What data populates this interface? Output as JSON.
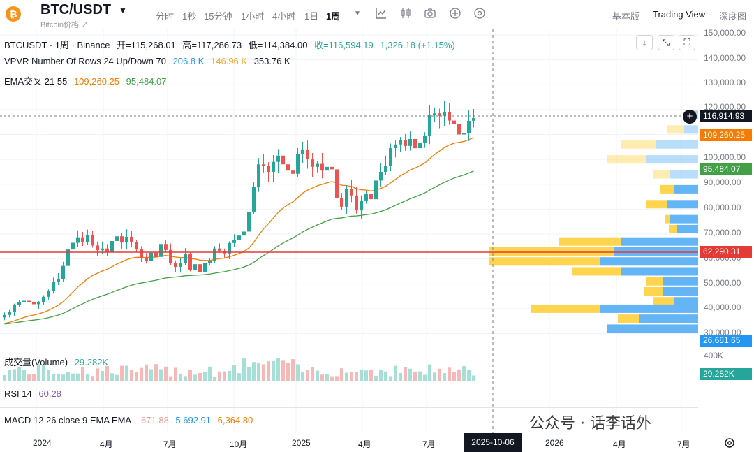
{
  "header": {
    "logo_glyph": "₿",
    "pair": "BTC/USDT",
    "subtitle": "Bitcoin价格 ↗",
    "timeframes": [
      "分时",
      "1秒",
      "15分钟",
      "1小时",
      "4小时",
      "1日",
      "1周"
    ],
    "active_timeframe": "1周",
    "views": [
      "基本版",
      "Trading View",
      "深度图"
    ],
    "active_view": "Trading View"
  },
  "legend": {
    "symbol": "BTCUSDT · 1周 · Binance",
    "open_label": "开=115,268.01",
    "high_label": "高=117,286.73",
    "low_label": "低=114,384.00",
    "close_label": "收=116,594.19",
    "change": "1,326.18 (+1.15%)",
    "vpvr": "VPVR Number Of Rows 24 Up/Down 70",
    "vpvr_v1": "206.8 K",
    "vpvr_v2": "146.96 K",
    "vpvr_v3": "353.76 K",
    "ema": "EMA交叉 21 55",
    "ema_v1": "109,260.25",
    "ema_v2": "95,484.07",
    "volume": "成交量(Volume)",
    "volume_v": "29.282K",
    "rsi": "RSI 14",
    "rsi_v": "60.28",
    "macd": "MACD 12 26 close 9 EMA EMA",
    "macd_v1": "-671.88",
    "macd_v2": "5,692.91",
    "macd_v3": "6,364.80"
  },
  "price_axis": [
    "150,000.00",
    "140,000.00",
    "130,000.00",
    "120,000.00",
    "100,000.00",
    "90,000.00",
    "80,000.00",
    "70,000.00",
    "60,000.00",
    "50,000.00",
    "40,000.00",
    "30,000.00"
  ],
  "badges": {
    "current": "116,914.93",
    "ema21": "109,260.25",
    "ema55": "95,484.07",
    "hline": "62,290.31",
    "vp_low": "26,681.65",
    "vol_axis": "400K",
    "vol_badge": "29.282K"
  },
  "time_axis": [
    "2024",
    "4月",
    "7月",
    "10月",
    "2025",
    "4月",
    "7月",
    "2026",
    "4月",
    "7月"
  ],
  "crosshair_date": "2025-10-06",
  "watermark": "公众号 · 话李话外",
  "colors": {
    "up": "#26a69a",
    "down": "#ef5350",
    "ema21": "#f57c00",
    "ema55": "#43a047",
    "hline": "#e53935",
    "vp_up": "#64b5f6",
    "vp_down": "#ffd54f"
  },
  "chart_data": {
    "type": "candlestick",
    "interval": "1 week",
    "pair": "BTCUSDT",
    "closes": [
      37500,
      38800,
      41500,
      42600,
      43200,
      42500,
      41800,
      42600,
      44800,
      47000,
      50800,
      52000,
      57200,
      63800,
      66500,
      68700,
      66800,
      69500,
      65400,
      63500,
      64200,
      62800,
      67200,
      69100,
      66600,
      68900,
      66800,
      64000,
      60200,
      59300,
      62500,
      60800,
      66000,
      63600,
      58500,
      56800,
      58300,
      61900,
      55600,
      57900,
      54800,
      58500,
      59300,
      64200,
      63300,
      62200,
      66400,
      67500,
      69400,
      71000,
      79000,
      89000,
      98000,
      97500,
      95000,
      99000,
      101500,
      98000,
      95500,
      94200,
      102000,
      104000,
      100000,
      97000,
      98200,
      95500,
      97000,
      96000,
      84500,
      81000,
      88000,
      85500,
      79500,
      83500,
      86000,
      84000,
      91500,
      95000,
      97500,
      104500,
      106000,
      107800,
      105400,
      108200,
      104500,
      106500,
      109500,
      117800,
      118500,
      117500,
      119000,
      115600,
      114200,
      110000,
      110500,
      115500,
      116594
    ]
  }
}
